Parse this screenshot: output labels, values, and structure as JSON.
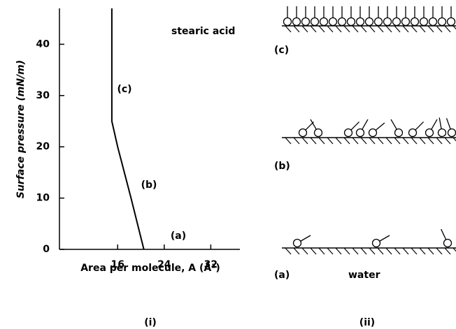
{
  "chart_data": {
    "type": "line",
    "x_label": "Area per molecule, A (Å²)",
    "y_label": "Surface pressure (mN/m)",
    "annotations": [
      "stearic acid",
      "(c)",
      "(b)",
      "(a)"
    ],
    "x": [
      15,
      15,
      16,
      18.3,
      20.5
    ],
    "series": [
      {
        "name": "stearic acid",
        "color": "#000000",
        "values": [
          47,
          25,
          20,
          10,
          0
        ]
      }
    ],
    "xlim": [
      6,
      37
    ],
    "xticks": [
      16,
      24,
      32
    ],
    "ylim": [
      0,
      47
    ],
    "yticks": [
      0,
      10,
      20,
      30,
      40
    ],
    "grid": false
  },
  "diagram": {
    "labels": [
      "(c)",
      "(b)",
      "(a)"
    ],
    "water": "water"
  },
  "panel_labels": [
    "(i)",
    "(ii)"
  ]
}
